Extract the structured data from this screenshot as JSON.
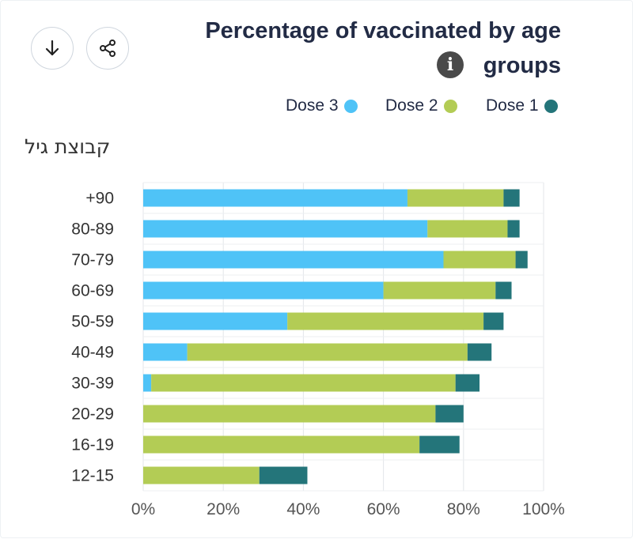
{
  "header": {
    "title_line1": "Percentage of vaccinated by age",
    "title_line2": "groups",
    "info_icon_label": "i",
    "download_icon": "arrow-down-icon",
    "share_icon": "share-icon"
  },
  "y_axis_title": "קבוצת גיל",
  "colors": {
    "dose3": "#4fc3f7",
    "dose2": "#b3cc55",
    "dose1": "#24757a"
  },
  "legend": [
    {
      "label": "Dose 3",
      "color": "#4fc3f7"
    },
    {
      "label": "Dose 2",
      "color": "#b3cc55"
    },
    {
      "label": "Dose 1",
      "color": "#24757a"
    }
  ],
  "chart_data": {
    "type": "bar",
    "orientation": "horizontal",
    "stacked": true,
    "title": "Percentage of vaccinated by age groups",
    "ylabel": "קבוצת גיל",
    "xlabel": "",
    "xlim": [
      0,
      100
    ],
    "x_ticks": [
      "0%",
      "20%",
      "40%",
      "60%",
      "80%",
      "100%"
    ],
    "grid": true,
    "legend_position": "top-right",
    "categories": [
      "+90",
      "80-89",
      "70-79",
      "60-69",
      "50-59",
      "40-49",
      "30-39",
      "20-29",
      "16-19",
      "12-15"
    ],
    "series": [
      {
        "name": "Dose 3",
        "color": "#4fc3f7",
        "values": [
          66,
          71,
          75,
          60,
          36,
          11,
          2,
          0,
          0,
          0
        ]
      },
      {
        "name": "Dose 2",
        "color": "#b3cc55",
        "values": [
          24,
          20,
          18,
          28,
          49,
          70,
          76,
          73,
          69,
          29
        ]
      },
      {
        "name": "Dose 1",
        "color": "#24757a",
        "values": [
          4,
          3,
          3,
          4,
          5,
          6,
          6,
          7,
          10,
          12
        ]
      }
    ]
  }
}
